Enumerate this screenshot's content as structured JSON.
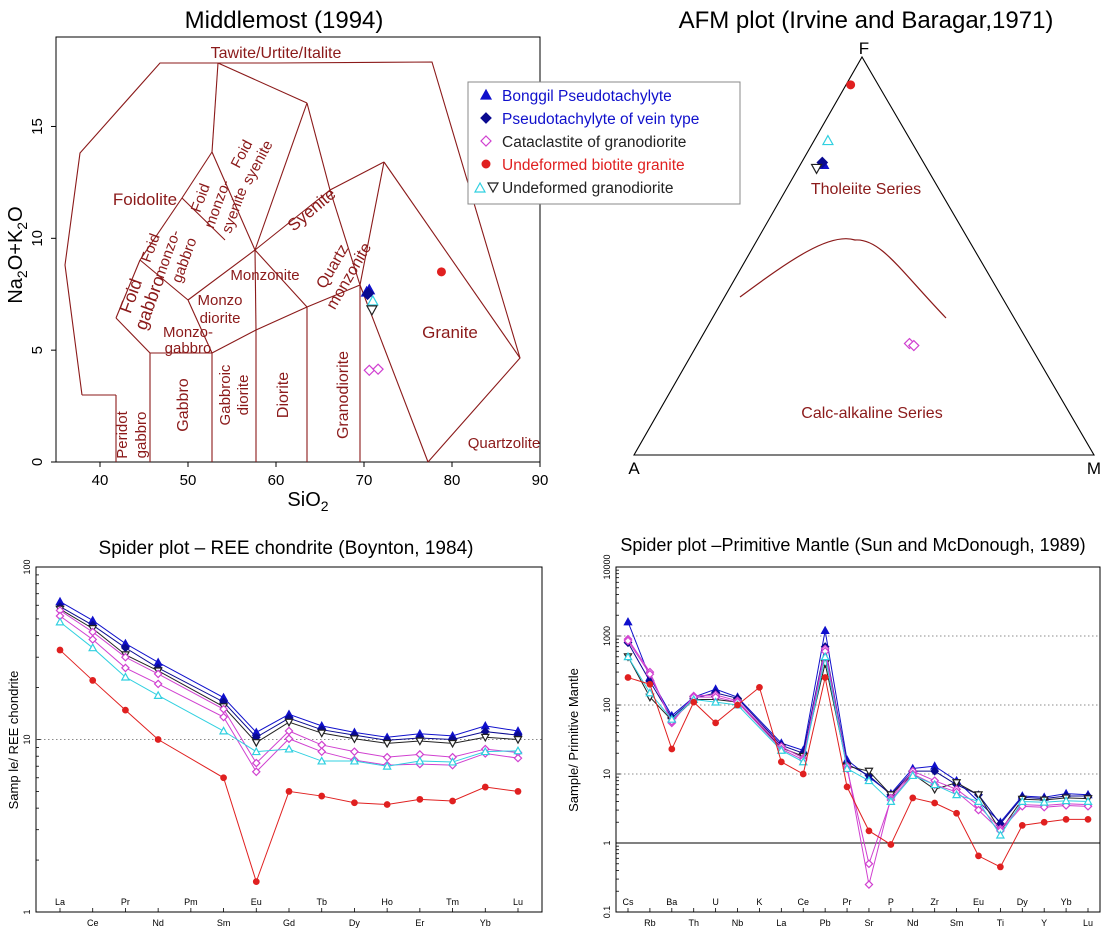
{
  "colors": {
    "field": "#8b1a1a",
    "bonggil": "#1010cc",
    "vein": "#0a0a90",
    "cataclastite": "#d040d0",
    "biotite_granite": "#e02020",
    "granodiorite_cyan": "#30d0e0",
    "granodiorite_black": "#222222"
  },
  "legend": [
    {
      "label": "Bonggil Pseudotachylyte",
      "color": "#1010cc",
      "marker": "triangle-up"
    },
    {
      "label": "Pseudotachylyte of vein type",
      "color": "#0a0a90",
      "marker": "diamond-filled"
    },
    {
      "label": "Cataclastite of granodiorite",
      "color": "#222222",
      "marker": "diamond-open"
    },
    {
      "label": "Undeformed biotite granite",
      "color": "#e02020",
      "marker": "circle"
    },
    {
      "label": "Undeformed granodiorite",
      "color": "#222222",
      "marker": "triangles-pair"
    }
  ],
  "chart_data": [
    {
      "type": "scatter",
      "title": "Middlemost (1994)",
      "xlabel_main": "SiO",
      "xlabel_sub": "2",
      "ylabel": "Na2O+K2O",
      "xlim": [
        35,
        90
      ],
      "ylim": [
        0,
        19
      ],
      "xticks": [
        "40",
        "50",
        "60",
        "70",
        "80",
        "90"
      ],
      "yticks": [
        "0",
        "5",
        "10",
        "15"
      ],
      "field_labels": {
        "tawite": "Tawite/Urtite/Italite",
        "foidolite": "Foidolite",
        "foid_syenite_1": "Foid",
        "foid_syenite_2": "syenite",
        "foid_monzosyenite_1": "Foid",
        "foid_monzosyenite_2": "monzo-",
        "foid_monzosyenite_3": "syenite",
        "foid_monzogabbro_1": "Foid",
        "foid_monzogabbro_2": "monzo-",
        "foid_monzogabbro_3": "gabbro",
        "foid_gabbro_1": "Foid",
        "foid_gabbro_2": "gabbro",
        "syenite": "Syenite",
        "quartz_monzonite_1": "Quartz",
        "quartz_monzonite_2": "monzonite",
        "monzonite": "Monzonite",
        "monzodiorite_1": "Monzo",
        "monzodiorite_2": "diorite",
        "monzogabbro_1": "Monzo-",
        "monzogabbro_2": "gabbro",
        "peridot_gabbro_1": "Peridot",
        "peridot_gabbro_2": "gabbro",
        "gabbro": "Gabbro",
        "gabbroic_diorite_1": "Gabbroic",
        "gabbroic_diorite_2": "diorite",
        "diorite": "Diorite",
        "granodiorite": "Granodiorite",
        "granite": "Granite",
        "quartzolite": "Quartzolite"
      },
      "series": [
        {
          "name": "Bonggil Pseudotachylyte",
          "points": [
            [
              70.3,
              7.6
            ],
            [
              70.6,
              7.7
            ]
          ]
        },
        {
          "name": "Pseudotachylyte of vein type",
          "points": [
            [
              70.4,
              7.5
            ],
            [
              70.5,
              7.55
            ]
          ]
        },
        {
          "name": "Cataclastite of granodiorite",
          "points": [
            [
              70.6,
              4.1
            ],
            [
              71.6,
              4.15
            ]
          ]
        },
        {
          "name": "Undeformed biotite granite",
          "points": [
            [
              78.8,
              8.5
            ]
          ]
        },
        {
          "name": "Undeformed granodiorite",
          "points": [
            [
              71.0,
              7.2
            ],
            [
              70.9,
              6.8
            ]
          ]
        }
      ]
    },
    {
      "type": "scatter",
      "title": "AFM plot (Irvine and Baragar,1971)",
      "vertices": [
        "A",
        "F",
        "M"
      ],
      "field_labels": {
        "tholeiite": "Tholeiite Series",
        "calc_alkaline": "Calc-alkaline Series"
      },
      "series": [
        {
          "name": "Bonggil Pseudotachylyte",
          "points": [
            [
              0.22,
              0.73,
              0.05
            ]
          ]
        },
        {
          "name": "Pseudotachylyte of vein type",
          "points": [
            [
              0.22,
              0.735,
              0.045
            ]
          ]
        },
        {
          "name": "Cataclastite of granodiorite",
          "points": [
            [
              0.26,
              0.28,
              0.46
            ],
            [
              0.253,
              0.275,
              0.472
            ]
          ]
        },
        {
          "name": "Undeformed biotite granite",
          "points": [
            [
              0.06,
              0.93,
              0.01
            ]
          ]
        },
        {
          "name": "Undeformed granodiorite",
          "points": [
            [
              0.18,
              0.79,
              0.03
            ],
            [
              0.24,
              0.72,
              0.04
            ]
          ]
        }
      ]
    },
    {
      "type": "line",
      "title": "Spider plot – REE chondrite (Boynton, 1984)",
      "ylabel": "Samp le/ REE chondrite",
      "yscale": "log",
      "ylim": [
        1,
        100
      ],
      "yticks": [
        "1",
        "10",
        "100"
      ],
      "categories": [
        "La",
        "Ce",
        "Pr",
        "Nd",
        "Pm",
        "Sm",
        "Eu",
        "Gd",
        "Tb",
        "Dy",
        "Ho",
        "Er",
        "Tm",
        "Yb",
        "Lu"
      ],
      "series": [
        {
          "name": "Bonggil Pseudotachylyte",
          "values": [
            63,
            49,
            36,
            28,
            null,
            17.5,
            11,
            14,
            12,
            11,
            10.3,
            10.8,
            10.5,
            12,
            11.2
          ]
        },
        {
          "name": "Pseudotachylyte of vein type",
          "values": [
            59,
            46,
            34,
            26,
            null,
            16.5,
            10.3,
            13.3,
            11.4,
            10.6,
            9.9,
            10.2,
            10,
            11.1,
            10.6
          ]
        },
        {
          "name": "Undeformed granodiorite",
          "values": [
            57,
            44,
            31,
            25,
            null,
            15.5,
            9.6,
            12.6,
            10.9,
            10.1,
            9.5,
            9.8,
            9.5,
            10.3,
            10
          ]
        },
        {
          "name": "Cataclastite of granodiorite",
          "values": [
            56,
            42,
            30,
            24,
            null,
            15,
            7.3,
            11.2,
            9.3,
            8.5,
            7.9,
            8.2,
            7.9,
            8.8,
            8.4
          ]
        },
        {
          "name": "Cataclastite of granodiorite",
          "values": [
            52,
            38,
            26,
            21,
            null,
            13.5,
            6.5,
            10.1,
            8.5,
            7.6,
            7.1,
            7.2,
            7.1,
            8.3,
            7.8
          ]
        },
        {
          "name": "Undeformed granodiorite",
          "values": [
            48,
            34,
            23,
            18,
            null,
            11.2,
            8.5,
            8.8,
            7.5,
            7.5,
            7,
            7.5,
            7.4,
            8.5,
            8.6
          ]
        },
        {
          "name": "Undeformed biotite granite",
          "values": [
            33,
            22,
            14.8,
            10,
            null,
            6,
            1.5,
            5,
            4.7,
            4.3,
            4.2,
            4.5,
            4.4,
            5.3,
            5
          ]
        }
      ]
    },
    {
      "type": "line",
      "title": "Spider plot –Primitive Mantle (Sun and McDonough, 1989)",
      "ylabel": "Sample/ Primitive Mantle",
      "yscale": "log",
      "ylim": [
        0.1,
        10000
      ],
      "yticks": [
        "0.1",
        "1",
        "10",
        "100",
        "1000",
        "10000"
      ],
      "categories": [
        "Cs",
        "Rb",
        "Ba",
        "Th",
        "U",
        "Nb",
        "K",
        "La",
        "Ce",
        "Pb",
        "Pr",
        "Sr",
        "P",
        "Nd",
        "Zr",
        "Sm",
        "Eu",
        "Ti",
        "Dy",
        "Y",
        "Yb",
        "Lu"
      ],
      "series": [
        {
          "name": "Bonggil Pseudotachylyte",
          "values": [
            1600,
            250,
            70,
            130,
            170,
            130,
            null,
            28,
            22,
            1200,
            16,
            9,
            5.2,
            12,
            13,
            8,
            null,
            2,
            4.8,
            4.6,
            5.2,
            5
          ]
        },
        {
          "name": "Pseudotachylyte of vein type",
          "values": [
            800,
            220,
            65,
            125,
            150,
            125,
            null,
            26,
            20,
            700,
            14,
            9.5,
            5,
            11,
            11,
            7,
            5,
            1.9,
            4.6,
            4.4,
            4.8,
            4.8
          ]
        },
        {
          "name": "Undeformed granodiorite",
          "values": [
            500,
            130,
            60,
            120,
            120,
            110,
            null,
            24,
            18,
            400,
            13,
            11,
            5,
            10,
            6,
            7.5,
            5,
            1.5,
            4.3,
            4.2,
            4.5,
            4.4
          ]
        },
        {
          "name": "Cataclastite of granodiorite",
          "values": [
            900,
            300,
            55,
            135,
            140,
            115,
            null,
            25,
            17,
            650,
            13,
            0.25,
            4.5,
            11,
            8,
            6,
            3.5,
            1.6,
            3.6,
            3.5,
            3.7,
            3.6
          ]
        },
        {
          "name": "Cataclastite of granodiorite",
          "values": [
            850,
            280,
            58,
            130,
            130,
            110,
            null,
            23,
            16,
            600,
            12,
            0.5,
            4.2,
            10,
            7,
            5.5,
            3,
            1.5,
            3.4,
            3.3,
            3.5,
            3.4
          ]
        },
        {
          "name": "Undeformed granodiorite",
          "values": [
            500,
            150,
            62,
            120,
            110,
            100,
            null,
            22,
            15,
            500,
            12,
            8,
            4,
            9.5,
            7,
            5,
            4,
            1.3,
            4,
            3.9,
            4.1,
            4
          ]
        },
        {
          "name": "Undeformed biotite granite",
          "values": [
            250,
            200,
            23,
            110,
            55,
            100,
            180,
            15,
            10,
            250,
            6.5,
            1.5,
            0.95,
            4.5,
            3.8,
            2.7,
            0.65,
            0.45,
            1.8,
            2,
            2.2,
            2.2
          ]
        }
      ]
    }
  ]
}
